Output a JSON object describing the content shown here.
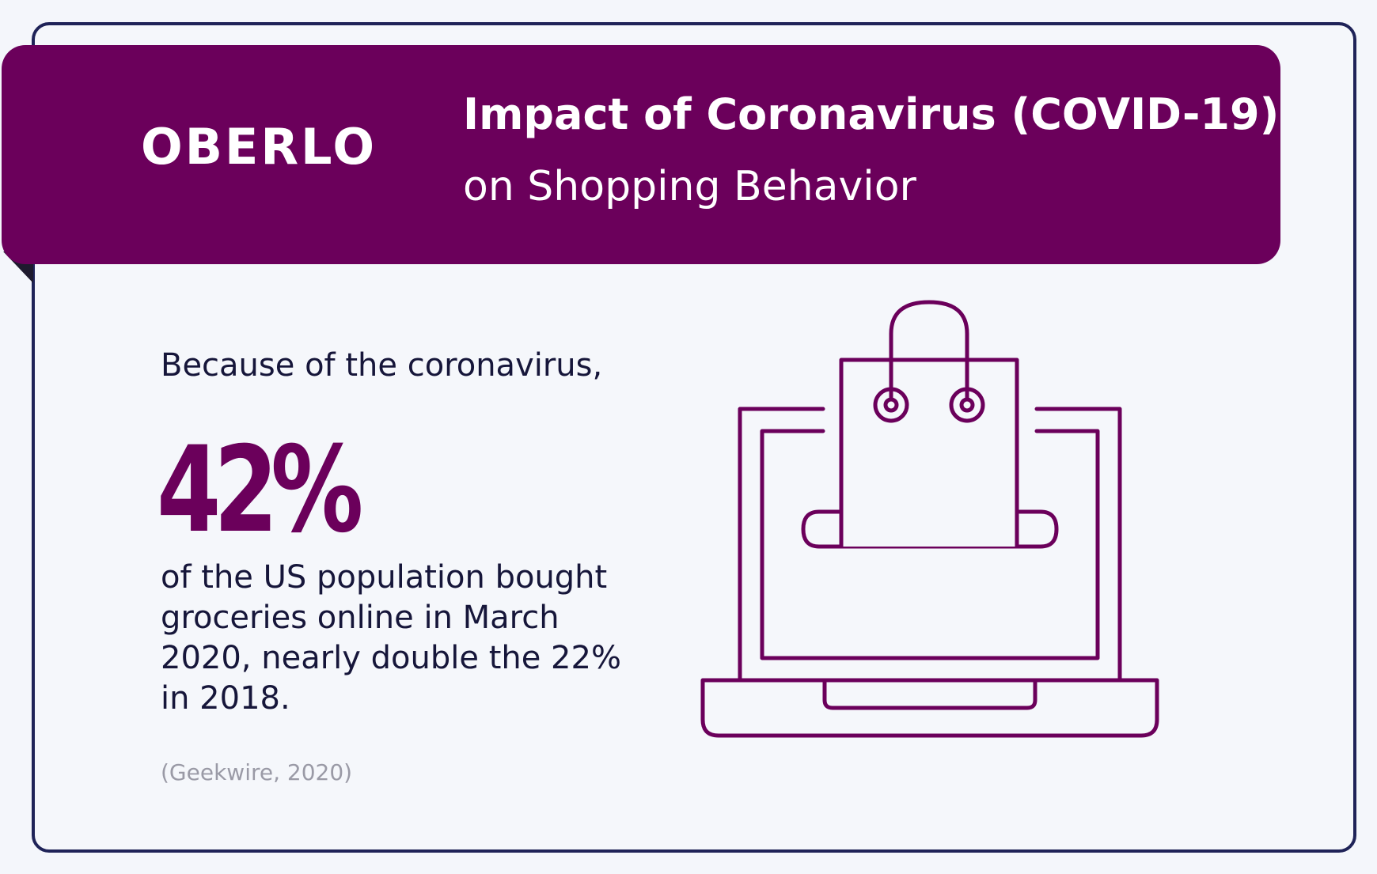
{
  "header": {
    "logo": "OBERLO",
    "title": "Impact of Coronavirus (COVID-19)",
    "subtitle": "on Shopping Behavior"
  },
  "stat": {
    "intro": "Because of the coronavirus,",
    "value": "42%",
    "description": "of the US population bought groceries online in March 2020, nearly double the 22% in 2018.",
    "source": "(Geekwire, 2020)"
  },
  "illustration": {
    "icon": "laptop-shopping-bag-icon"
  },
  "colors": {
    "brand": "#6b005b",
    "border": "#1f2358",
    "text": "#16163a",
    "muted": "#9a9aa6",
    "background": "#f5f7fb"
  }
}
